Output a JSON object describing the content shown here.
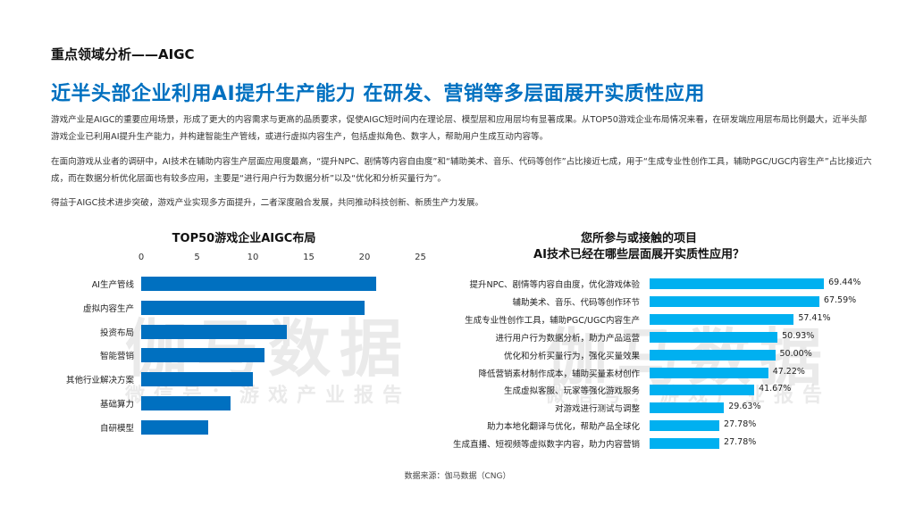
{
  "section_title": "重点领域分析——AIGC",
  "headline": "近半头部企业利用AI提升生产能力 在研发、营销等多层面展开实质性应用",
  "paragraphs": [
    "游戏产业是AIGC的重要应用场景，形成了更大的内容需求与更高的品质要求，促使AIGC短时间内在理论层、模型层和应用层均有显著成果。从TOP50游戏企业布局情况来看，在研发端应用层布局比例最大，近半头部游戏企业已利用AI提升生产能力，并构建智能生产管线，或进行虚拟内容生产，包括虚拟角色、数字人，帮助用户生成互动内容等。",
    "在面向游戏从业者的调研中，AI技术在辅助内容生产层面应用度最高，“提升NPC、剧情等内容自由度”和“辅助美术、音乐、代码等创作”占比接近七成，用于“生成专业性创作工具，辅助PGC/UGC内容生产”占比接近六成，而在数据分析优化层面也有较多应用，主要是“进行用户行为数据分析”以及“优化和分析买量行为”。",
    "得益于AIGC技术进步突破，游戏产业实现多方面提升，二者深度融合发展，共同推动科技创新、新质生产力发展。"
  ],
  "watermark": {
    "main": "伽马数据",
    "sub": "微信号：游戏产业报告"
  },
  "source": "数据来源：伽马数据（CNG）",
  "chart_data": [
    {
      "type": "bar",
      "orientation": "horizontal",
      "title": "TOP50游戏企业AIGC布局",
      "categories": [
        "AI生产管线",
        "虚拟内容生产",
        "投资布局",
        "智能营销",
        "其他行业解决方案",
        "基础算力",
        "自研模型"
      ],
      "values": [
        21,
        20,
        13,
        11,
        10,
        8,
        6
      ],
      "xlim": [
        0,
        25
      ],
      "xticks": [
        "0",
        "5",
        "10",
        "15",
        "20",
        "25"
      ],
      "xaxis_position": "top",
      "grid": false,
      "color": "#0070c0"
    },
    {
      "type": "bar",
      "orientation": "horizontal",
      "title": "您所参与或接触的项目\nAI技术已经在哪些层面展开实质性应用？",
      "title_lines": [
        "您所参与或接触的项目",
        "AI技术已经在哪些层面展开实质性应用？"
      ],
      "categories": [
        "提升NPC、剧情等内容自由度，优化游戏体验",
        "辅助美术、音乐、代码等创作环节",
        "生成专业性创作工具，辅助PGC/UGC内容生产",
        "进行用户行为数据分析，助力产品运营",
        "优化和分析买量行为，强化买量效果",
        "降低营销素材制作成本，辅助买量素材创作",
        "生成虚拟客服、玩家等强化游戏服务",
        "对游戏进行测试与调整",
        "助力本地化翻译与优化，帮助产品全球化",
        "生成直播、短视频等虚拟数字内容，助力内容营销"
      ],
      "values": [
        69.44,
        67.59,
        57.41,
        50.93,
        50.0,
        47.22,
        41.67,
        29.63,
        27.78,
        27.78
      ],
      "data_labels": [
        "69.44%",
        "67.59%",
        "57.41%",
        "50.93%",
        "50.00%",
        "47.22%",
        "41.67%",
        "29.63%",
        "27.78%",
        "27.78%"
      ],
      "grid": false,
      "color": "#00b0f0"
    }
  ]
}
